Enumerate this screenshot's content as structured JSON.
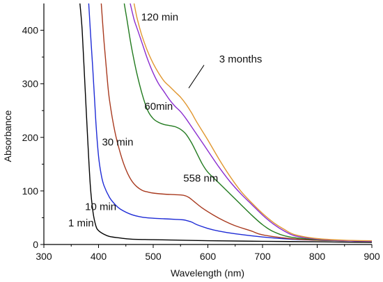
{
  "chart_data": {
    "type": "line",
    "xlabel": "Wavelength (nm)",
    "ylabel": "Absorbance",
    "xlim": [
      300,
      900
    ],
    "ylim": [
      0,
      450
    ],
    "xticks": [
      300,
      400,
      500,
      600,
      700,
      800,
      900
    ],
    "yticks": [
      0,
      100,
      200,
      300,
      400
    ],
    "grid": false,
    "series": [
      {
        "name": "1 min",
        "color": "#000000",
        "x": [
          366,
          370,
          375,
          380,
          385,
          390,
          395,
          400,
          410,
          420,
          440,
          460,
          500,
          550,
          600,
          700,
          800,
          900
        ],
        "y": [
          450,
          400,
          300,
          200,
          110,
          60,
          35,
          26,
          19,
          15,
          12,
          10,
          9,
          8,
          7,
          6,
          5,
          4
        ]
      },
      {
        "name": "10 min",
        "color": "#1e2bd6",
        "x": [
          382,
          385,
          390,
          395,
          400,
          405,
          410,
          420,
          430,
          440,
          460,
          480,
          500,
          520,
          540,
          555,
          560,
          570,
          580,
          600,
          620,
          650,
          700,
          750,
          800,
          900
        ],
        "y": [
          450,
          400,
          320,
          230,
          165,
          130,
          110,
          88,
          75,
          66,
          56,
          51,
          49,
          48,
          47,
          46,
          45,
          42,
          37,
          30,
          25,
          20,
          14,
          10,
          8,
          6
        ]
      },
      {
        "name": "30 min",
        "color": "#a8391e",
        "x": [
          405,
          410,
          415,
          420,
          430,
          440,
          450,
          460,
          470,
          480,
          490,
          500,
          520,
          540,
          555,
          565,
          575,
          590,
          610,
          630,
          650,
          680,
          700,
          750,
          800,
          850,
          900
        ],
        "y": [
          450,
          380,
          320,
          270,
          210,
          170,
          140,
          120,
          108,
          101,
          98,
          96,
          94,
          93,
          92,
          88,
          80,
          68,
          55,
          44,
          35,
          25,
          18,
          11,
          8,
          7,
          6
        ]
      },
      {
        "name": "60min",
        "color": "#217a1e",
        "x": [
          447,
          452,
          460,
          470,
          480,
          490,
          500,
          510,
          520,
          530,
          540,
          550,
          560,
          570,
          580,
          590,
          600,
          620,
          640,
          660,
          680,
          700,
          720,
          750,
          800,
          850,
          900
        ],
        "y": [
          450,
          420,
          370,
          320,
          280,
          250,
          235,
          228,
          224,
          222,
          220,
          215,
          206,
          190,
          170,
          150,
          135,
          115,
          95,
          75,
          55,
          37,
          24,
          14,
          9,
          7,
          6
        ]
      },
      {
        "name": "120 min",
        "color": "#8a2ccf",
        "x": [
          458,
          465,
          470,
          475,
          480,
          490,
          500,
          510,
          520,
          530,
          540,
          550,
          560,
          570,
          580,
          600,
          620,
          640,
          660,
          680,
          700,
          720,
          740,
          760,
          800,
          850,
          900
        ],
        "y": [
          450,
          420,
          405,
          390,
          375,
          345,
          320,
          300,
          285,
          270,
          258,
          248,
          235,
          220,
          205,
          175,
          145,
          118,
          95,
          75,
          55,
          38,
          25,
          16,
          10,
          7,
          6
        ]
      },
      {
        "name": "3 months",
        "color": "#e0962e",
        "x": [
          465,
          470,
          475,
          480,
          490,
          500,
          510,
          520,
          530,
          540,
          550,
          560,
          570,
          580,
          600,
          620,
          640,
          660,
          680,
          700,
          720,
          740,
          760,
          800,
          850,
          900
        ],
        "y": [
          450,
          425,
          405,
          388,
          360,
          338,
          320,
          305,
          295,
          285,
          275,
          262,
          246,
          228,
          195,
          160,
          128,
          100,
          78,
          58,
          41,
          28,
          18,
          11,
          8,
          7
        ]
      }
    ],
    "annotations": [
      {
        "text": "120 min",
        "x": 512,
        "y": 425
      },
      {
        "text": "3 months",
        "x": 660,
        "y": 346
      },
      {
        "text": "60min",
        "x": 510,
        "y": 258
      },
      {
        "text": "30 min",
        "x": 435,
        "y": 191
      },
      {
        "text": "558 nm",
        "x": 587,
        "y": 124
      },
      {
        "text": "10 min",
        "x": 404,
        "y": 71
      },
      {
        "text": "1 min",
        "x": 368,
        "y": 40
      }
    ],
    "leader_line": {
      "from": [
        565,
        292
      ],
      "to": [
        593,
        335
      ]
    }
  }
}
